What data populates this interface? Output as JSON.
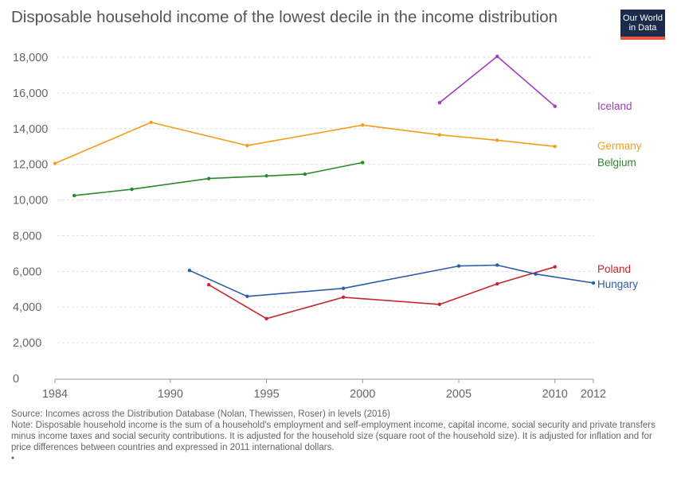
{
  "title": "Disposable household income of the lowest decile in the income distribution",
  "logo": {
    "line1": "Our World",
    "line2": "in Data"
  },
  "footer": {
    "source": "Source: Incomes across the Distribution Database (Nolan, Thewissen, Roser) in levels (2016)",
    "note": "Note: Disposable household income is the sum of a household's employment and self-employment income, capital income, social security and private transfers minus income taxes and social security contributions. It is adjusted for the household size (square root of the household size). It is adjusted for inflation and for price differences between countries and expressed in 2011 international dollars.",
    "bullet": "•"
  },
  "colors": {
    "grid": "#dddddd",
    "axis": "#999999",
    "tick_text": "#666666"
  },
  "chart_data": {
    "type": "line",
    "title": "Disposable household income of the lowest decile in the income distribution",
    "xlabel": "",
    "ylabel": "",
    "xlim": [
      1984,
      2012
    ],
    "ylim": [
      0,
      18000
    ],
    "x_ticks": [
      1984,
      1990,
      1995,
      2000,
      2005,
      2010,
      2012
    ],
    "x_tick_labels": [
      "1984",
      "1990",
      "1995",
      "2000",
      "2005",
      "2010",
      "2012"
    ],
    "y_ticks": [
      0,
      2000,
      4000,
      6000,
      8000,
      10000,
      12000,
      14000,
      16000,
      18000
    ],
    "y_tick_labels": [
      "0",
      "2,000",
      "4,000",
      "6,000",
      "8,000",
      "10,000",
      "12,000",
      "14,000",
      "16,000",
      "18,000"
    ],
    "grid": true,
    "legend_placement": "right-end labels",
    "series": [
      {
        "name": "Iceland",
        "color": "#a33cbf",
        "points": [
          [
            2004,
            15450
          ],
          [
            2007,
            18050
          ],
          [
            2010,
            15250
          ]
        ]
      },
      {
        "name": "Germany",
        "color": "#f29e1a",
        "points": [
          [
            1984,
            12050
          ],
          [
            1989,
            14350
          ],
          [
            1994,
            13050
          ],
          [
            2000,
            14200
          ],
          [
            2004,
            13650
          ],
          [
            2007,
            13350
          ],
          [
            2010,
            13000
          ]
        ]
      },
      {
        "name": "Belgium",
        "color": "#2a8a2a",
        "points": [
          [
            1985,
            10250
          ],
          [
            1988,
            10600
          ],
          [
            1992,
            11200
          ],
          [
            1995,
            11350
          ],
          [
            1997,
            11450
          ],
          [
            2000,
            12100
          ]
        ]
      },
      {
        "name": "Poland",
        "color": "#c6262e",
        "points": [
          [
            1992,
            5250
          ],
          [
            1995,
            3350
          ],
          [
            1999,
            4550
          ],
          [
            2004,
            4150
          ],
          [
            2007,
            5300
          ],
          [
            2010,
            6250
          ]
        ]
      },
      {
        "name": "Hungary",
        "color": "#2d5ca8",
        "points": [
          [
            1991,
            6050
          ],
          [
            1994,
            4600
          ],
          [
            1999,
            5050
          ],
          [
            2005,
            6300
          ],
          [
            2007,
            6350
          ],
          [
            2009,
            5850
          ],
          [
            2012,
            5350
          ]
        ]
      }
    ]
  }
}
